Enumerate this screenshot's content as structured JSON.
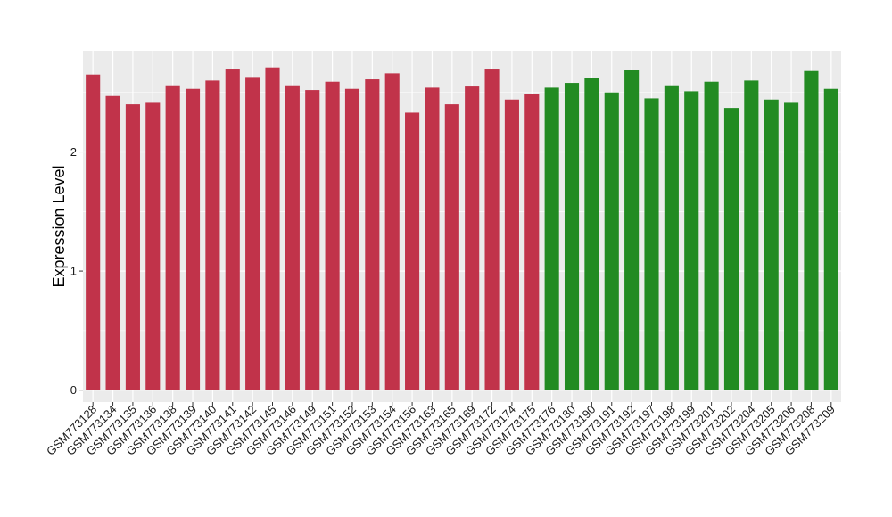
{
  "chart_data": {
    "type": "bar",
    "title": "",
    "xlabel": "",
    "ylabel": "Expression Level",
    "ylim": [
      -0.1,
      2.85
    ],
    "yticks": [
      0,
      1,
      2
    ],
    "grid": true,
    "legend": "none",
    "panel_background": "#ebebeb",
    "grid_color": "#ffffff",
    "categories": [
      "GSM773128",
      "GSM773134",
      "GSM773135",
      "GSM773136",
      "GSM773138",
      "GSM773139",
      "GSM773140",
      "GSM773141",
      "GSM773142",
      "GSM773145",
      "GSM773146",
      "GSM773149",
      "GSM773151",
      "GSM773152",
      "GSM773153",
      "GSM773154",
      "GSM773156",
      "GSM773163",
      "GSM773165",
      "GSM773169",
      "GSM773172",
      "GSM773174",
      "GSM773175",
      "GSM773176",
      "GSM773180",
      "GSM773190",
      "GSM773191",
      "GSM773192",
      "GSM773197",
      "GSM773198",
      "GSM773199",
      "GSM773201",
      "GSM773202",
      "GSM773204",
      "GSM773205",
      "GSM773206",
      "GSM773208",
      "GSM773209"
    ],
    "values": [
      2.65,
      2.47,
      2.4,
      2.42,
      2.56,
      2.53,
      2.6,
      2.7,
      2.63,
      2.71,
      2.56,
      2.52,
      2.59,
      2.53,
      2.61,
      2.66,
      2.33,
      2.54,
      2.4,
      2.55,
      2.7,
      2.44,
      2.49,
      2.54,
      2.58,
      2.62,
      2.5,
      2.69,
      2.45,
      2.56,
      2.51,
      2.59,
      2.37,
      2.6,
      2.44,
      2.42,
      2.68,
      2.53
    ],
    "bar_colors": [
      "#c1334a",
      "#c1334a",
      "#c1334a",
      "#c1334a",
      "#c1334a",
      "#c1334a",
      "#c1334a",
      "#c1334a",
      "#c1334a",
      "#c1334a",
      "#c1334a",
      "#c1334a",
      "#c1334a",
      "#c1334a",
      "#c1334a",
      "#c1334a",
      "#c1334a",
      "#c1334a",
      "#c1334a",
      "#c1334a",
      "#c1334a",
      "#c1334a",
      "#c1334a",
      "#228b22",
      "#228b22",
      "#228b22",
      "#228b22",
      "#228b22",
      "#228b22",
      "#228b22",
      "#228b22",
      "#228b22",
      "#228b22",
      "#228b22",
      "#228b22",
      "#228b22",
      "#228b22",
      "#228b22"
    ]
  }
}
